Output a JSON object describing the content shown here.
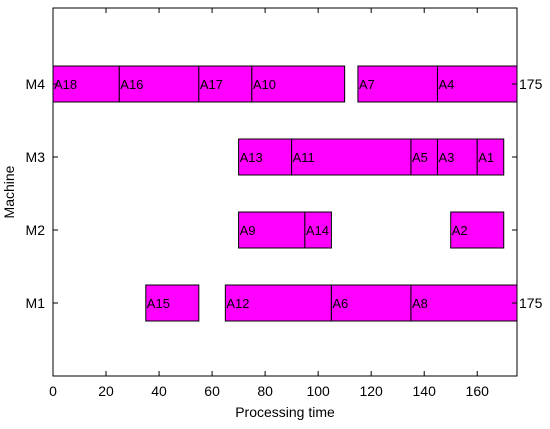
{
  "chart_data": {
    "type": "gantt",
    "xlabel": "Processing time",
    "ylabel": "Machine",
    "xlim": [
      0,
      175
    ],
    "xticks": [
      0,
      20,
      40,
      60,
      80,
      100,
      120,
      140,
      160
    ],
    "machines": [
      "M1",
      "M2",
      "M3",
      "M4"
    ],
    "bar_color": "#ff00ff",
    "tasks": [
      {
        "machine": "M4",
        "label": "A18",
        "start": 0,
        "end": 25
      },
      {
        "machine": "M4",
        "label": "A16",
        "start": 25,
        "end": 55
      },
      {
        "machine": "M4",
        "label": "A17",
        "start": 55,
        "end": 75
      },
      {
        "machine": "M4",
        "label": "A10",
        "start": 75,
        "end": 110
      },
      {
        "machine": "M4",
        "label": "A7",
        "start": 115,
        "end": 145
      },
      {
        "machine": "M4",
        "label": "A4",
        "start": 145,
        "end": 175
      },
      {
        "machine": "M3",
        "label": "A13",
        "start": 70,
        "end": 90
      },
      {
        "machine": "M3",
        "label": "A11",
        "start": 90,
        "end": 135
      },
      {
        "machine": "M3",
        "label": "A5",
        "start": 135,
        "end": 145
      },
      {
        "machine": "M3",
        "label": "A3",
        "start": 145,
        "end": 160
      },
      {
        "machine": "M3",
        "label": "A1",
        "start": 160,
        "end": 170
      },
      {
        "machine": "M2",
        "label": "A9",
        "start": 70,
        "end": 95
      },
      {
        "machine": "M2",
        "label": "A14",
        "start": 95,
        "end": 105
      },
      {
        "machine": "M2",
        "label": "A2",
        "start": 150,
        "end": 170
      },
      {
        "machine": "M1",
        "label": "A15",
        "start": 35,
        "end": 55
      },
      {
        "machine": "M1",
        "label": "A12",
        "start": 65,
        "end": 105
      },
      {
        "machine": "M1",
        "label": "A6",
        "start": 105,
        "end": 135
      },
      {
        "machine": "M1",
        "label": "A8",
        "start": 135,
        "end": 175
      }
    ],
    "end_labels": [
      {
        "machine": "M4",
        "text": "175"
      },
      {
        "machine": "M1",
        "text": "175"
      }
    ]
  }
}
